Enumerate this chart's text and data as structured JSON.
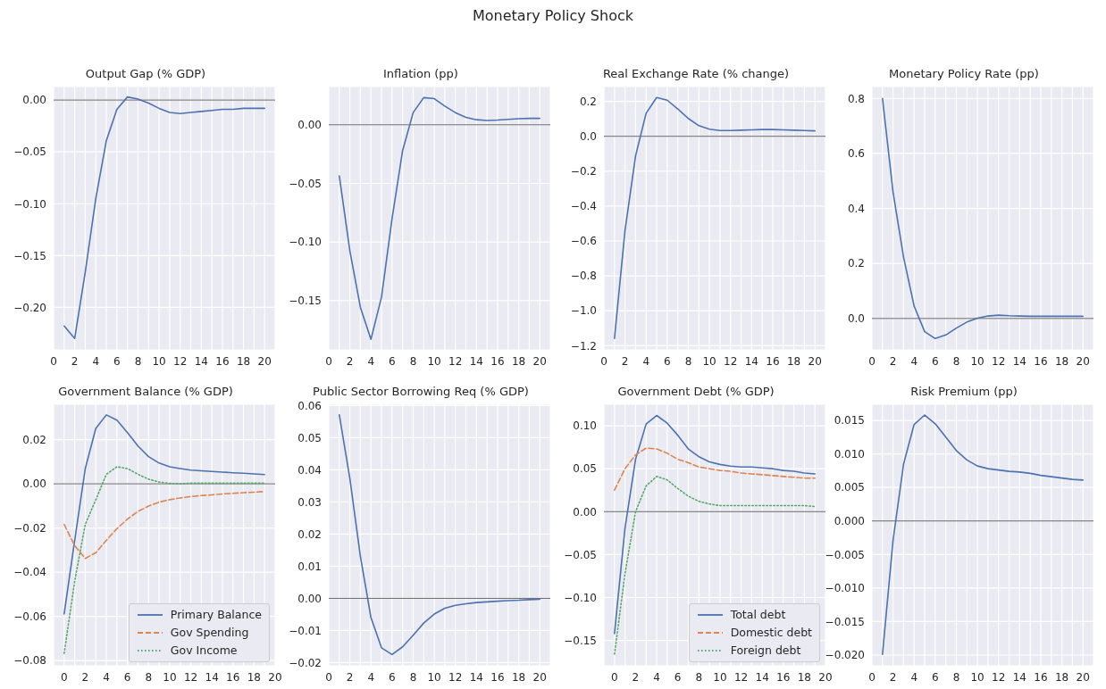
{
  "chart_data": [
    {
      "type": "other",
      "title": "Monetary Policy Shock"
    },
    {
      "type": "line",
      "title": "Output Gap (% GDP)",
      "x": [
        1,
        2,
        3,
        4,
        5,
        6,
        7,
        8,
        9,
        10,
        11,
        12,
        13,
        14,
        15,
        16,
        17,
        18,
        19,
        20
      ],
      "series": [
        {
          "color": "#4c72b0",
          "values": [
            -0.218,
            -0.23,
            -0.166,
            -0.095,
            -0.039,
            -0.009,
            0.003,
            0.001,
            -0.003,
            -0.008,
            -0.012,
            -0.013,
            -0.012,
            -0.011,
            -0.01,
            -0.009,
            -0.009,
            -0.008,
            -0.008,
            -0.008
          ]
        }
      ],
      "xlim": [
        0,
        21
      ],
      "xticks": [
        0,
        {
          "value": 1,
          "label": null
        },
        2,
        {
          "value": 3,
          "label": null
        },
        4,
        {
          "value": 5,
          "label": null
        },
        6,
        {
          "value": 7,
          "label": null
        },
        8,
        {
          "value": 9,
          "label": null
        },
        10,
        {
          "value": 11,
          "label": null
        },
        12,
        {
          "value": 13,
          "label": null
        },
        14,
        {
          "value": 15,
          "label": null
        },
        16,
        {
          "value": 17,
          "label": null
        },
        18,
        {
          "value": 19,
          "label": null
        },
        20
      ],
      "ylim": [
        -0.241,
        0.013
      ],
      "yticks": [
        {
          "value": -0.2,
          "label": "−0.20"
        },
        {
          "value": -0.15,
          "label": "−0.15"
        },
        {
          "value": -0.1,
          "label": "−0.10"
        },
        {
          "value": -0.05,
          "label": "−0.05"
        },
        {
          "value": 0,
          "label": "0.00"
        }
      ],
      "ref_lines": [
        {
          "axis": "y",
          "value": 0,
          "color": "#666666"
        }
      ],
      "grid": true,
      "marker": "none",
      "line_style": "solid"
    },
    {
      "type": "line",
      "title": "Inflation (pp)",
      "x": [
        1,
        2,
        3,
        4,
        5,
        6,
        7,
        8,
        9,
        10,
        11,
        12,
        13,
        14,
        15,
        16,
        17,
        18,
        19,
        20
      ],
      "series": [
        {
          "color": "#4c72b0",
          "values": [
            -0.0436,
            -0.1076,
            -0.1558,
            -0.183,
            -0.147,
            -0.08,
            -0.022,
            0.0104,
            0.0232,
            0.0223,
            0.0159,
            0.0104,
            0.0064,
            0.0043,
            0.0037,
            0.004,
            0.0046,
            0.0052,
            0.0055,
            0.0055
          ]
        }
      ],
      "xlim": [
        0,
        21
      ],
      "xticks": [
        0,
        {
          "value": 1,
          "label": null
        },
        2,
        {
          "value": 3,
          "label": null
        },
        4,
        {
          "value": 5,
          "label": null
        },
        6,
        {
          "value": 7,
          "label": null
        },
        8,
        {
          "value": 9,
          "label": null
        },
        10,
        {
          "value": 11,
          "label": null
        },
        12,
        {
          "value": 13,
          "label": null
        },
        14,
        {
          "value": 15,
          "label": null
        },
        16,
        {
          "value": 17,
          "label": null
        },
        18,
        {
          "value": 19,
          "label": null
        },
        20
      ],
      "ylim": [
        -0.192,
        0.0326
      ],
      "yticks": [
        {
          "value": -0.15,
          "label": "−0.15"
        },
        {
          "value": -0.1,
          "label": "−0.10"
        },
        {
          "value": -0.05,
          "label": "−0.05"
        },
        {
          "value": 0,
          "label": "0.00"
        }
      ],
      "ref_lines": [
        {
          "axis": "y",
          "value": 0,
          "color": "#666666"
        }
      ],
      "grid": true,
      "marker": "none",
      "line_style": "solid"
    },
    {
      "type": "line",
      "title": "Real Exchange Rate (% change)",
      "x": [
        1,
        2,
        3,
        4,
        5,
        6,
        7,
        8,
        9,
        10,
        11,
        12,
        13,
        14,
        15,
        16,
        17,
        18,
        19,
        20
      ],
      "series": [
        {
          "color": "#4c72b0",
          "values": [
            -1.159,
            -0.539,
            -0.112,
            0.132,
            0.222,
            0.207,
            0.157,
            0.102,
            0.061,
            0.041,
            0.033,
            0.033,
            0.035,
            0.037,
            0.039,
            0.039,
            0.037,
            0.035,
            0.033,
            0.031
          ]
        }
      ],
      "xlim": [
        0,
        21
      ],
      "xticks": [
        0,
        {
          "value": 1,
          "label": null
        },
        2,
        {
          "value": 3,
          "label": null
        },
        4,
        {
          "value": 5,
          "label": null
        },
        6,
        {
          "value": 7,
          "label": null
        },
        8,
        {
          "value": 9,
          "label": null
        },
        10,
        {
          "value": 11,
          "label": null
        },
        12,
        {
          "value": 13,
          "label": null
        },
        14,
        {
          "value": 15,
          "label": null
        },
        16,
        {
          "value": 17,
          "label": null
        },
        18,
        {
          "value": 19,
          "label": null
        },
        20
      ],
      "ylim": [
        -1.224,
        0.285
      ],
      "yticks": [
        {
          "value": -1.2,
          "label": "−1.2"
        },
        {
          "value": -1,
          "label": "−1.0"
        },
        {
          "value": -0.8,
          "label": "−0.8"
        },
        {
          "value": -0.6,
          "label": "−0.6"
        },
        {
          "value": -0.4,
          "label": "−0.4"
        },
        {
          "value": -0.2,
          "label": "−0.2"
        },
        {
          "value": 0,
          "label": "0.0"
        },
        {
          "value": 0.2,
          "label": "0.2"
        }
      ],
      "ref_lines": [
        {
          "axis": "y",
          "value": 0,
          "color": "#666666"
        }
      ],
      "grid": true,
      "marker": "none",
      "line_style": "solid"
    },
    {
      "type": "line",
      "title": "Monetary Policy Rate (pp)",
      "x": [
        1,
        2,
        3,
        4,
        5,
        6,
        7,
        8,
        9,
        10,
        11,
        12,
        13,
        14,
        15,
        16,
        17,
        18,
        19,
        20
      ],
      "series": [
        {
          "color": "#4c72b0",
          "values": [
            0.8,
            0.46,
            0.222,
            0.045,
            -0.048,
            -0.073,
            -0.06,
            -0.035,
            -0.013,
            0.001,
            0.009,
            0.012,
            0.01,
            0.009,
            0.008,
            0.008,
            0.008,
            0.008,
            0.008,
            0.008
          ]
        }
      ],
      "xlim": [
        0,
        21
      ],
      "xticks": [
        0,
        {
          "value": 1,
          "label": null
        },
        2,
        {
          "value": 3,
          "label": null
        },
        4,
        {
          "value": 5,
          "label": null
        },
        6,
        {
          "value": 7,
          "label": null
        },
        8,
        {
          "value": 9,
          "label": null
        },
        10,
        {
          "value": 11,
          "label": null
        },
        12,
        {
          "value": 13,
          "label": null
        },
        14,
        {
          "value": 15,
          "label": null
        },
        16,
        {
          "value": 17,
          "label": null
        },
        18,
        {
          "value": 19,
          "label": null
        },
        20
      ],
      "ylim": [
        -0.114,
        0.843
      ],
      "yticks": [
        {
          "value": 0,
          "label": "0.0"
        },
        {
          "value": 0.2,
          "label": "0.2"
        },
        {
          "value": 0.4,
          "label": "0.4"
        },
        {
          "value": 0.6,
          "label": "0.6"
        },
        {
          "value": 0.8,
          "label": "0.8"
        }
      ],
      "ref_lines": [
        {
          "axis": "y",
          "value": 0,
          "color": "#666666"
        }
      ],
      "grid": true,
      "marker": "none",
      "line_style": "solid"
    },
    {
      "type": "line",
      "title": "Government Balance (% GDP)",
      "x": [
        0,
        1,
        2,
        3,
        4,
        5,
        6,
        7,
        8,
        9,
        10,
        11,
        12,
        13,
        14,
        15,
        16,
        17,
        18,
        19
      ],
      "series": [
        {
          "name": "Primary Balance",
          "color": "#4c72b0",
          "line_style": "solid",
          "values": [
            -0.0589,
            -0.0256,
            0.0069,
            0.0251,
            0.0312,
            0.0288,
            0.0232,
            0.0171,
            0.0123,
            0.0094,
            0.0077,
            0.0069,
            0.0062,
            0.0059,
            0.0056,
            0.0053,
            0.005,
            0.0048,
            0.0045,
            0.0042
          ]
        },
        {
          "name": "Gov Spending",
          "color": "#dd8452",
          "line_style": "dashed",
          "values": [
            -0.0184,
            -0.028,
            -0.0338,
            -0.0312,
            -0.0256,
            -0.0203,
            -0.016,
            -0.0125,
            -0.0101,
            -0.0083,
            -0.0072,
            -0.0064,
            -0.0058,
            -0.0053,
            -0.005,
            -0.0046,
            -0.0043,
            -0.004,
            -0.0038,
            -0.0035
          ]
        },
        {
          "name": "Gov Income",
          "color": "#55a868",
          "line_style": "dotted",
          "values": [
            -0.0768,
            -0.044,
            -0.0184,
            -0.0072,
            0.0043,
            0.0077,
            0.0069,
            0.0043,
            0.0021,
            0.0008,
            0.0002,
            0,
            0.0003,
            0.0003,
            0.0003,
            0.0003,
            0.0003,
            0.0003,
            0.0003,
            0.0003
          ]
        }
      ],
      "xlim": [
        -1,
        20
      ],
      "xticks": [
        0,
        {
          "value": 1,
          "label": null
        },
        2,
        {
          "value": 3,
          "label": null
        },
        4,
        {
          "value": 5,
          "label": null
        },
        6,
        {
          "value": 7,
          "label": null
        },
        8,
        {
          "value": 9,
          "label": null
        },
        10,
        {
          "value": 11,
          "label": null
        },
        12,
        {
          "value": 13,
          "label": null
        },
        14,
        {
          "value": 15,
          "label": null
        },
        16,
        {
          "value": 17,
          "label": null
        },
        18,
        {
          "value": 19,
          "label": null
        },
        20
      ],
      "ylim": [
        -0.0824,
        0.036
      ],
      "yticks": [
        {
          "value": -0.08,
          "label": "−0.08"
        },
        {
          "value": -0.06,
          "label": "−0.06"
        },
        {
          "value": -0.04,
          "label": "−0.04"
        },
        {
          "value": -0.02,
          "label": "−0.02"
        },
        {
          "value": 0,
          "label": "0.00"
        },
        {
          "value": 0.02,
          "label": "0.02"
        }
      ],
      "ref_lines": [
        {
          "axis": "y",
          "value": 0,
          "color": "#666666"
        }
      ],
      "grid": true,
      "marker": "none",
      "legend": "bottom right"
    },
    {
      "type": "line",
      "title": "Public Sector Borrowing Req (% GDP)",
      "x": [
        1,
        2,
        3,
        4,
        5,
        6,
        7,
        8,
        9,
        10,
        11,
        12,
        13,
        14,
        15,
        16,
        17,
        18,
        19,
        20
      ],
      "series": [
        {
          "color": "#4c72b0",
          "values": [
            0.0571,
            0.0373,
            0.013,
            -0.006,
            -0.0154,
            -0.0175,
            -0.0151,
            -0.0115,
            -0.0077,
            -0.0049,
            -0.0031,
            -0.0022,
            -0.0017,
            -0.0013,
            -0.0011,
            -0.0009,
            -0.0007,
            -0.0006,
            -0.0004,
            -0.0003
          ]
        }
      ],
      "xlim": [
        0,
        21
      ],
      "xticks": [
        0,
        {
          "value": 1,
          "label": null
        },
        2,
        {
          "value": 3,
          "label": null
        },
        4,
        {
          "value": 5,
          "label": null
        },
        6,
        {
          "value": 7,
          "label": null
        },
        8,
        {
          "value": 9,
          "label": null
        },
        10,
        {
          "value": 11,
          "label": null
        },
        12,
        {
          "value": 13,
          "label": null
        },
        14,
        {
          "value": 15,
          "label": null
        },
        16,
        {
          "value": 17,
          "label": null
        },
        18,
        {
          "value": 19,
          "label": null
        },
        20
      ],
      "ylim": [
        -0.021,
        0.0604
      ],
      "yticks": [
        {
          "value": -0.02,
          "label": "−0.02"
        },
        {
          "value": -0.01,
          "label": "−0.01"
        },
        {
          "value": 0,
          "label": "0.00"
        },
        {
          "value": 0.01,
          "label": "0.01"
        },
        {
          "value": 0.02,
          "label": "0.02"
        },
        {
          "value": 0.03,
          "label": "0.03"
        },
        {
          "value": 0.04,
          "label": "0.04"
        },
        {
          "value": 0.05,
          "label": "0.05"
        },
        {
          "value": 0.06,
          "label": "0.06"
        }
      ],
      "ref_lines": [
        {
          "axis": "y",
          "value": 0,
          "color": "#666666"
        }
      ],
      "grid": true,
      "marker": "none",
      "line_style": "solid"
    },
    {
      "type": "line",
      "title": "Government Debt (% GDP)",
      "x": [
        0,
        1,
        2,
        3,
        4,
        5,
        6,
        7,
        8,
        9,
        10,
        11,
        12,
        13,
        14,
        15,
        16,
        17,
        18,
        19
      ],
      "series": [
        {
          "name": "Total debt",
          "color": "#4c72b0",
          "line_style": "solid",
          "values": [
            -0.142,
            -0.019,
            0.061,
            0.102,
            0.112,
            0.103,
            0.089,
            0.073,
            0.064,
            0.058,
            0.055,
            0.053,
            0.052,
            0.052,
            0.051,
            0.05,
            0.048,
            0.047,
            0.045,
            0.044
          ]
        },
        {
          "name": "Domestic debt",
          "color": "#dd8452",
          "line_style": "dashed",
          "values": [
            0.025,
            0.05,
            0.066,
            0.074,
            0.073,
            0.068,
            0.061,
            0.057,
            0.052,
            0.05,
            0.048,
            0.047,
            0.045,
            0.044,
            0.043,
            0.042,
            0.041,
            0.04,
            0.039,
            0.039
          ]
        },
        {
          "name": "Foreign debt",
          "color": "#55a868",
          "line_style": "dotted",
          "values": [
            -0.166,
            -0.072,
            0,
            0.03,
            0.041,
            0.037,
            0.027,
            0.018,
            0.012,
            0.009,
            0.007,
            0.007,
            0.007,
            0.007,
            0.007,
            0.007,
            0.007,
            0.007,
            0.007,
            0.006
          ]
        }
      ],
      "xlim": [
        -1,
        20
      ],
      "xticks": [
        0,
        {
          "value": 1,
          "label": null
        },
        2,
        {
          "value": 3,
          "label": null
        },
        4,
        {
          "value": 5,
          "label": null
        },
        6,
        {
          "value": 7,
          "label": null
        },
        8,
        {
          "value": 9,
          "label": null
        },
        10,
        {
          "value": 11,
          "label": null
        },
        12,
        {
          "value": 13,
          "label": null
        },
        14,
        {
          "value": 15,
          "label": null
        },
        16,
        {
          "value": 17,
          "label": null
        },
        18,
        {
          "value": 19,
          "label": null
        },
        20
      ],
      "ylim": [
        -0.1795,
        0.125
      ],
      "yticks": [
        {
          "value": -0.15,
          "label": "−0.15"
        },
        {
          "value": -0.1,
          "label": "−0.10"
        },
        {
          "value": -0.05,
          "label": "−0.05"
        },
        {
          "value": 0,
          "label": "0.00"
        },
        {
          "value": 0.05,
          "label": "0.05"
        },
        {
          "value": 0.1,
          "label": "0.10"
        }
      ],
      "ref_lines": [
        {
          "axis": "y",
          "value": 0,
          "color": "#666666"
        }
      ],
      "grid": true,
      "marker": "none",
      "legend": "bottom right"
    },
    {
      "type": "line",
      "title": "Risk Premium (pp)",
      "x": [
        1,
        2,
        3,
        4,
        5,
        6,
        7,
        8,
        9,
        10,
        11,
        12,
        13,
        14,
        15,
        16,
        17,
        18,
        19,
        20
      ],
      "series": [
        {
          "color": "#4c72b0",
          "values": [
            -0.0199,
            -0.0029,
            0.0085,
            0.0144,
            0.0158,
            0.0145,
            0.0125,
            0.0105,
            0.0091,
            0.0082,
            0.0078,
            0.0076,
            0.0074,
            0.0073,
            0.0071,
            0.0068,
            0.0066,
            0.0064,
            0.0062,
            0.0061
          ]
        }
      ],
      "xlim": [
        0,
        21
      ],
      "xticks": [
        0,
        {
          "value": 1,
          "label": null
        },
        2,
        {
          "value": 3,
          "label": null
        },
        4,
        {
          "value": 5,
          "label": null
        },
        6,
        {
          "value": 7,
          "label": null
        },
        8,
        {
          "value": 9,
          "label": null
        },
        10,
        {
          "value": 11,
          "label": null
        },
        12,
        {
          "value": 13,
          "label": null
        },
        14,
        {
          "value": 15,
          "label": null
        },
        16,
        {
          "value": 17,
          "label": null
        },
        18,
        {
          "value": 19,
          "label": null
        },
        20
      ],
      "ylim": [
        -0.0216,
        0.0174
      ],
      "yticks": [
        {
          "value": -0.02,
          "label": "−0.020"
        },
        {
          "value": -0.015,
          "label": "−0.015"
        },
        {
          "value": -0.01,
          "label": "−0.010"
        },
        {
          "value": -0.005,
          "label": "−0.005"
        },
        {
          "value": 0,
          "label": "0.000"
        },
        {
          "value": 0.005,
          "label": "0.005"
        },
        {
          "value": 0.01,
          "label": "0.010"
        },
        {
          "value": 0.015,
          "label": "0.015"
        }
      ],
      "ref_lines": [
        {
          "axis": "y",
          "value": 0,
          "color": "#666666"
        }
      ],
      "grid": true,
      "marker": "none",
      "line_style": "solid"
    }
  ]
}
